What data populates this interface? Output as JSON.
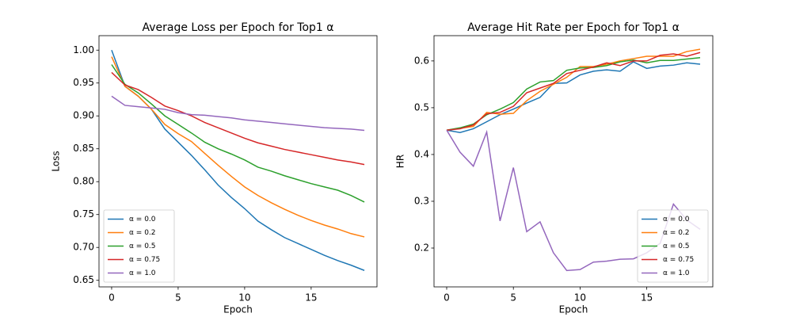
{
  "chart_data": [
    {
      "type": "line",
      "title": "Average Loss per Epoch for Top1 α",
      "xlabel": "Epoch",
      "ylabel": "Loss",
      "x": [
        0,
        1,
        2,
        3,
        4,
        5,
        6,
        7,
        8,
        9,
        10,
        11,
        12,
        13,
        14,
        15,
        16,
        17,
        18,
        19
      ],
      "xlim": [
        -0.95,
        19.95
      ],
      "xticks": [
        0,
        5,
        10,
        15
      ],
      "ylim": [
        0.64,
        1.022
      ],
      "yticks": [
        0.65,
        {
          "value": 0.7,
          "label": "0.70"
        },
        0.75,
        {
          "value": 0.8,
          "label": "0.80"
        },
        0.85,
        {
          "value": 0.9,
          "label": "0.90"
        },
        0.95,
        {
          "value": 1.0,
          "label": "1.00"
        }
      ],
      "legend": "lower left",
      "series": [
        {
          "name": "α = 0.0",
          "color": "#1f77b4",
          "values": [
            1.0,
            0.945,
            0.93,
            0.91,
            0.88,
            0.86,
            0.84,
            0.818,
            0.795,
            0.776,
            0.759,
            0.74,
            0.727,
            0.715,
            0.706,
            0.697,
            0.688,
            0.68,
            0.673,
            0.665
          ]
        },
        {
          "name": "α = 0.2",
          "color": "#ff7f0e",
          "values": [
            0.99,
            0.945,
            0.93,
            0.91,
            0.887,
            0.873,
            0.861,
            0.843,
            0.825,
            0.808,
            0.792,
            0.779,
            0.768,
            0.758,
            0.749,
            0.741,
            0.734,
            0.728,
            0.721,
            0.716
          ]
        },
        {
          "name": "α = 0.5",
          "color": "#2ca02c",
          "values": [
            0.978,
            0.948,
            0.935,
            0.918,
            0.9,
            0.887,
            0.874,
            0.86,
            0.85,
            0.842,
            0.833,
            0.822,
            0.816,
            0.809,
            0.803,
            0.797,
            0.792,
            0.787,
            0.779,
            0.769
          ]
        },
        {
          "name": "α = 0.75",
          "color": "#d62728",
          "values": [
            0.966,
            0.947,
            0.94,
            0.928,
            0.915,
            0.908,
            0.9,
            0.89,
            0.882,
            0.874,
            0.866,
            0.859,
            0.854,
            0.849,
            0.845,
            0.841,
            0.837,
            0.833,
            0.83,
            0.826
          ]
        },
        {
          "name": "α = 1.0",
          "color": "#9467bd",
          "values": [
            0.93,
            0.916,
            0.914,
            0.912,
            0.91,
            0.905,
            0.902,
            0.901,
            0.899,
            0.897,
            0.894,
            0.892,
            0.89,
            0.888,
            0.886,
            0.884,
            0.882,
            0.881,
            0.88,
            0.878
          ]
        }
      ]
    },
    {
      "type": "line",
      "title": "Average Hit Rate per Epoch for Top1 α",
      "xlabel": "Epoch",
      "ylabel": "HR",
      "x": [
        0,
        1,
        2,
        3,
        4,
        5,
        6,
        7,
        8,
        9,
        10,
        11,
        12,
        13,
        14,
        15,
        16,
        17,
        18,
        19
      ],
      "xlim": [
        -0.95,
        19.95
      ],
      "xticks": [
        0,
        5,
        10,
        15
      ],
      "ylim": [
        0.117,
        0.654
      ],
      "yticks": [
        0.2,
        0.3,
        0.4,
        0.5,
        0.6
      ],
      "legend": "lower right",
      "series": [
        {
          "name": "α = 0.0",
          "color": "#1f77b4",
          "values": [
            0.452,
            0.447,
            0.455,
            0.47,
            0.485,
            0.497,
            0.51,
            0.522,
            0.552,
            0.553,
            0.57,
            0.578,
            0.581,
            0.578,
            0.598,
            0.584,
            0.589,
            0.591,
            0.596,
            0.593
          ]
        },
        {
          "name": "α = 0.2",
          "color": "#ff7f0e",
          "values": [
            0.452,
            0.456,
            0.46,
            0.49,
            0.486,
            0.488,
            0.515,
            0.535,
            0.55,
            0.565,
            0.588,
            0.588,
            0.593,
            0.6,
            0.605,
            0.61,
            0.61,
            0.61,
            0.62,
            0.625
          ]
        },
        {
          "name": "α = 0.5",
          "color": "#2ca02c",
          "values": [
            0.452,
            0.457,
            0.465,
            0.485,
            0.497,
            0.511,
            0.54,
            0.555,
            0.558,
            0.58,
            0.585,
            0.586,
            0.59,
            0.598,
            0.602,
            0.596,
            0.601,
            0.601,
            0.604,
            0.607
          ]
        },
        {
          "name": "α = 0.75",
          "color": "#d62728",
          "values": [
            0.452,
            0.455,
            0.463,
            0.487,
            0.49,
            0.503,
            0.532,
            0.542,
            0.552,
            0.573,
            0.58,
            0.587,
            0.596,
            0.59,
            0.6,
            0.6,
            0.612,
            0.615,
            0.61,
            0.618
          ]
        },
        {
          "name": "α = 1.0",
          "color": "#9467bd",
          "values": [
            0.452,
            0.405,
            0.375,
            0.448,
            0.258,
            0.372,
            0.235,
            0.256,
            0.19,
            0.152,
            0.154,
            0.17,
            0.172,
            0.176,
            0.177,
            0.19,
            0.21,
            0.294,
            0.26,
            0.24
          ]
        }
      ]
    }
  ]
}
